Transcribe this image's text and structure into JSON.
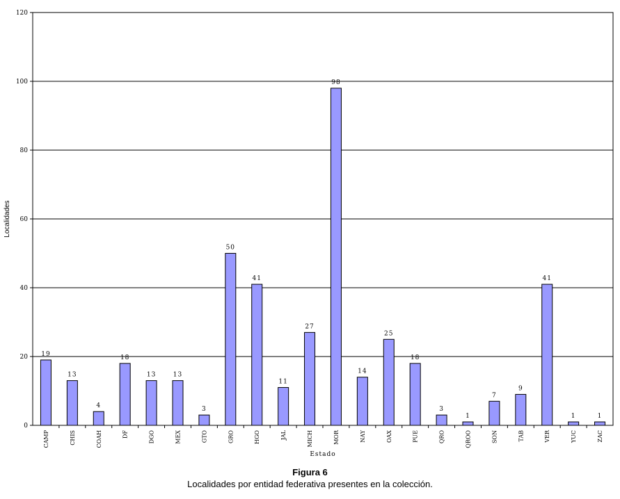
{
  "figure": {
    "title": "Figura 6",
    "caption": "Localidades por entidad federativa presentes en la colección."
  },
  "chart_data": {
    "type": "bar",
    "xlabel": "Estado",
    "ylabel": "Localidades",
    "ylim": [
      0,
      120
    ],
    "yticks": [
      0,
      20,
      40,
      60,
      80,
      100,
      120
    ],
    "grid": true,
    "bar_color": "#9999ff",
    "categories": [
      "CAMP",
      "CHIS",
      "COAH",
      "DF",
      "DGO",
      "MEX",
      "GTO",
      "GRO",
      "HGO",
      "JAL",
      "MICH",
      "MOR",
      "NAY",
      "OAX",
      "PUE",
      "QRO",
      "QROO",
      "SON",
      "TAB",
      "VER",
      "YUC",
      "ZAC"
    ],
    "values": [
      19,
      13,
      4,
      18,
      13,
      13,
      3,
      50,
      41,
      11,
      27,
      98,
      14,
      25,
      18,
      3,
      1,
      7,
      9,
      41,
      1,
      1
    ],
    "data_labels": [
      "19",
      "13",
      "4",
      "18",
      "13",
      "13",
      "3",
      "50",
      "41",
      "11",
      "27",
      "98",
      "14",
      "25",
      "18",
      "3",
      "1",
      "7",
      "9",
      "41",
      "1",
      "1"
    ]
  }
}
